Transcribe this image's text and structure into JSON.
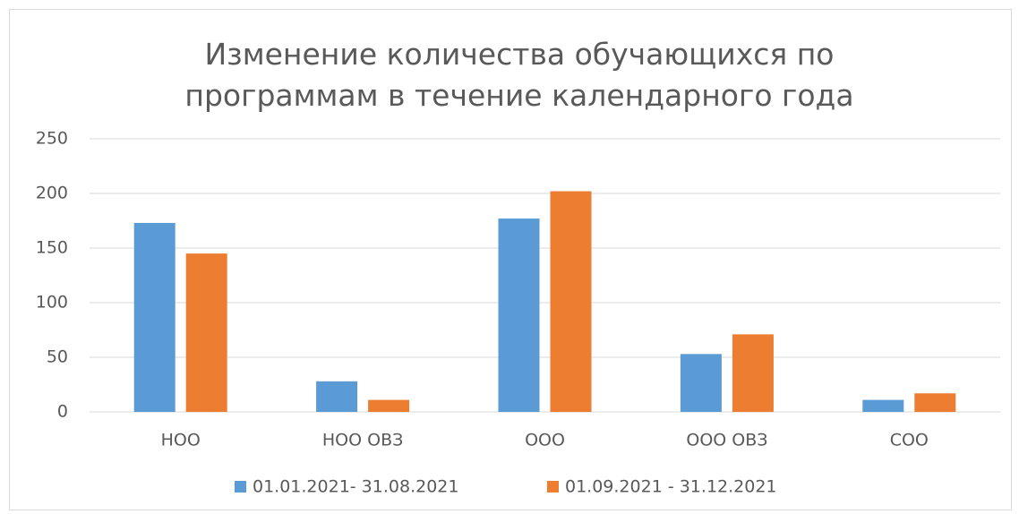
{
  "chart_data": {
    "type": "bar",
    "title": "Изменение количества обучающихся по программам в течение календарного года",
    "categories": [
      "НОО",
      "НОО ОВЗ",
      "ООО",
      "ООО ОВЗ",
      "СОО"
    ],
    "series": [
      {
        "name": "01.01.2021- 31.08.2021",
        "color": "#5b9bd5",
        "values": [
          173,
          28,
          177,
          53,
          11
        ]
      },
      {
        "name": "01.09.2021 - 31.12.2021",
        "color": "#ed7d31",
        "values": [
          145,
          11,
          202,
          71,
          17
        ]
      }
    ],
    "ylim": [
      0,
      250
    ],
    "yticks": [
      0,
      50,
      100,
      150,
      200,
      250
    ],
    "grid": true,
    "legend": "bottom"
  }
}
